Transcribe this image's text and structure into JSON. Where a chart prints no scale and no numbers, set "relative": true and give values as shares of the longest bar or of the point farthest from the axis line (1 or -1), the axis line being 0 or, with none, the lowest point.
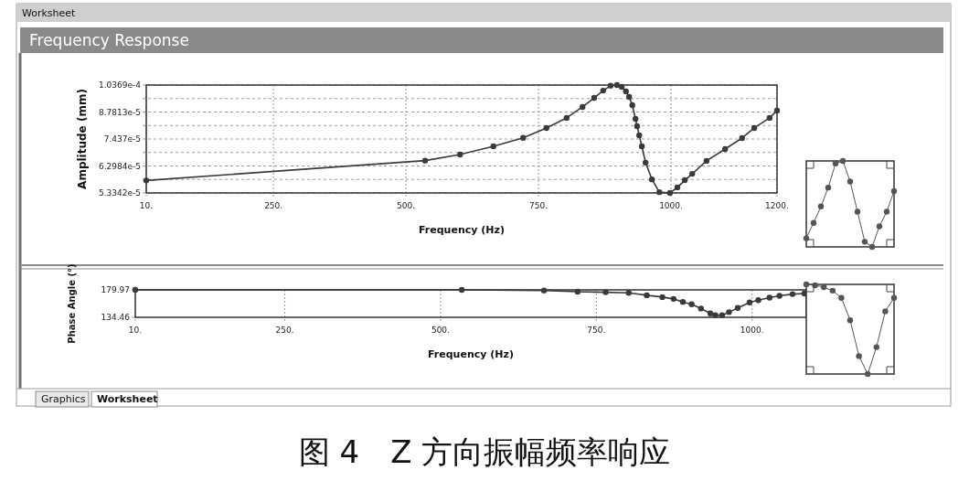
{
  "chart_data": [
    {
      "type": "line",
      "title": "Frequency Response",
      "xlabel": "Frequency (Hz)",
      "ylabel": "Amplitude (mm)",
      "log": "y",
      "grid": true,
      "marker": "circle",
      "line_style": "solid",
      "xlim": [
        10,
        1200
      ],
      "xticks": [
        {
          "value": 10,
          "label": "10."
        },
        {
          "value": 250,
          "label": "250."
        },
        {
          "value": 500,
          "label": "500."
        },
        {
          "value": 750,
          "label": "750."
        },
        {
          "value": 1000,
          "label": "1000."
        },
        {
          "value": 1200,
          "label": "1200."
        }
      ],
      "ylim": [
        5.3342e-05,
        0.00010369
      ],
      "yticks": [
        {
          "value": 5.3342e-05,
          "label": "5.3342e-5"
        },
        {
          "value": 5.797e-05,
          "label": null
        },
        {
          "value": 6.2984e-05,
          "label": "6.2984e-5"
        },
        {
          "value": 6.844e-05,
          "label": null
        },
        {
          "value": 7.437e-05,
          "label": "7.437e-5"
        },
        {
          "value": 8.081e-05,
          "label": null
        },
        {
          "value": 8.7813e-05,
          "label": "8.7813e-5"
        },
        {
          "value": 9.541e-05,
          "label": null
        },
        {
          "value": 0.00010369,
          "label": "1.0369e-4"
        }
      ],
      "x": [
        10,
        536,
        602,
        665,
        721,
        765,
        803,
        833,
        855,
        872,
        886,
        898,
        907,
        915,
        921,
        927,
        933,
        936,
        940,
        945,
        952,
        964,
        978,
        998,
        1012,
        1026,
        1040,
        1067,
        1102,
        1134,
        1157,
        1186,
        1200
      ],
      "series": [
        {
          "color": "#3a3a3a",
          "values": [
            5.76e-05,
            6.51e-05,
            6.76e-05,
            7.11e-05,
            7.49e-05,
            7.96e-05,
            8.47e-05,
            9.06e-05,
            9.58e-05,
            0.0001002,
            0.0001033,
            0.00010369,
            0.0001025,
            9.97e-05,
            9.64e-05,
            9.16e-05,
            8.42e-05,
            8.05e-05,
            7.61e-05,
            7.11e-05,
            6.43e-05,
            5.8e-05,
            5.36e-05,
            5.3342e-05,
            5.52e-05,
            5.77e-05,
            6e-05,
            6.5e-05,
            6.99e-05,
            7.48e-05,
            7.96e-05,
            8.47e-05,
            8.86e-05
          ]
        }
      ],
      "annotations": [
        "Worksheet",
        "Graphics",
        "Worksheet",
        "图 4　Z 方向振幅频率响应"
      ]
    },
    {
      "type": "line",
      "xlabel": "Frequency (Hz)",
      "ylabel": "Phase Angle (°)",
      "grid": "x",
      "marker": "circle",
      "line_style": "solid",
      "xlim": [
        10,
        1087
      ],
      "xticks": [
        {
          "value": 10,
          "label": "10."
        },
        {
          "value": 250,
          "label": "250."
        },
        {
          "value": 500,
          "label": "500."
        },
        {
          "value": 750,
          "label": "750."
        },
        {
          "value": 1000,
          "label": "1000."
        }
      ],
      "ylim": [
        134.46,
        179.97
      ],
      "yticks": [
        134.46,
        179.97
      ],
      "x": [
        10,
        534,
        666,
        720,
        765,
        802,
        831,
        856,
        874,
        889,
        903,
        918,
        933,
        941,
        952,
        963,
        977,
        996,
        1010,
        1028,
        1044,
        1065,
        1084
      ],
      "series": [
        {
          "color": "#3a3a3a",
          "values": [
            179.97,
            179.97,
            179,
            177,
            176,
            175,
            171,
            168,
            165,
            160,
            156,
            149,
            141,
            138,
            138,
            143,
            150,
            159,
            163,
            167,
            170,
            173,
            174
          ]
        }
      ]
    },
    {
      "type": "line",
      "relative": true,
      "marker": "circle",
      "line_style": "solid",
      "categories": [
        null,
        null,
        null,
        null,
        null,
        null,
        null,
        null,
        null,
        null,
        null,
        null,
        null
      ],
      "series": [
        {
          "color": "#555555",
          "values": [
            0.1,
            0.28,
            0.47,
            0.69,
            0.97,
            1,
            0.76,
            0.41,
            0.06,
            0,
            0.24,
            0.41,
            0.65
          ]
        }
      ]
    },
    {
      "type": "line",
      "relative": true,
      "marker": "circle",
      "line_style": "solid",
      "categories": [
        null,
        null,
        null,
        null,
        null,
        null,
        null,
        null,
        null,
        null,
        null
      ],
      "series": [
        {
          "color": "#555555",
          "values": [
            1,
            0.99,
            0.97,
            0.93,
            0.85,
            0.6,
            0.2,
            0,
            0.3,
            0.7,
            0.85
          ]
        }
      ]
    }
  ]
}
